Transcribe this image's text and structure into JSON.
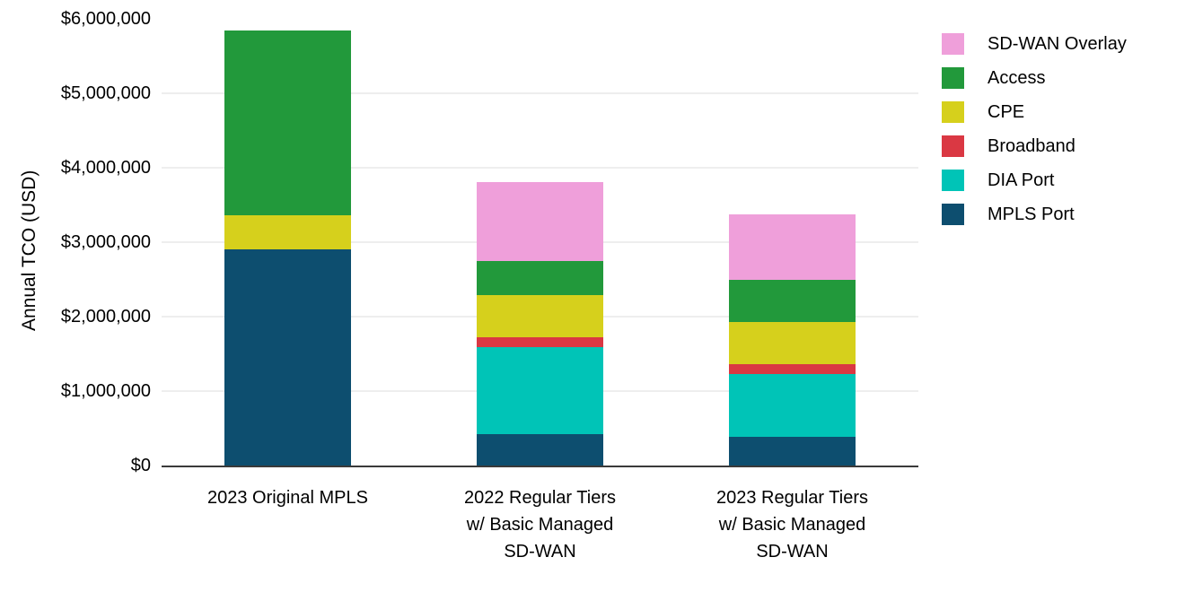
{
  "chart_data": {
    "type": "bar",
    "stacked": true,
    "title": "",
    "xlabel": "",
    "ylabel": "Annual TCO (USD)",
    "ylim": [
      0,
      6000000
    ],
    "grid": true,
    "categories": [
      "2023 Original MPLS",
      "2022 Regular Tiers w/ Basic Managed SD-WAN",
      "2023 Regular Tiers w/ Basic Managed SD-WAN"
    ],
    "label_lines": [
      [
        "2023 Original MPLS"
      ],
      [
        "2022 Regular Tiers",
        "w/ Basic Managed",
        "SD-WAN"
      ],
      [
        "2023 Regular Tiers",
        "w/ Basic Managed",
        "SD-WAN"
      ]
    ],
    "yticks": [
      {
        "value": 0,
        "label": "$0",
        "gridline": false
      },
      {
        "value": 1000000,
        "label": "$1,000,000",
        "gridline": true
      },
      {
        "value": 2000000,
        "label": "$2,000,000",
        "gridline": true
      },
      {
        "value": 3000000,
        "label": "$3,000,000",
        "gridline": true
      },
      {
        "value": 4000000,
        "label": "$4,000,000",
        "gridline": true
      },
      {
        "value": 5000000,
        "label": "$5,000,000",
        "gridline": true
      },
      {
        "value": 6000000,
        "label": "$6,000,000",
        "gridline": false
      }
    ],
    "series": [
      {
        "name": "MPLS Port",
        "color": "#0d4e6f",
        "values": [
          2900000,
          420000,
          380000
        ]
      },
      {
        "name": "DIA Port",
        "color": "#00c4b7",
        "values": [
          0,
          1170000,
          850000
        ]
      },
      {
        "name": "Broadband",
        "color": "#da3843",
        "values": [
          0,
          130000,
          130000
        ]
      },
      {
        "name": "CPE",
        "color": "#d6d01c",
        "values": [
          460000,
          570000,
          570000
        ]
      },
      {
        "name": "Access",
        "color": "#22993b",
        "values": [
          2480000,
          460000,
          560000
        ]
      },
      {
        "name": "SD-WAN Overlay",
        "color": "#ef9fda",
        "values": [
          0,
          1060000,
          880000
        ]
      }
    ],
    "totals": [
      5840000,
      3810000,
      3370000
    ],
    "legend": {
      "position": "right",
      "order": [
        "SD-WAN Overlay",
        "Access",
        "CPE",
        "Broadband",
        "DIA Port",
        "MPLS Port"
      ]
    },
    "axis_color": "#3a3a3a",
    "gridline_color": "#eeeeee"
  }
}
